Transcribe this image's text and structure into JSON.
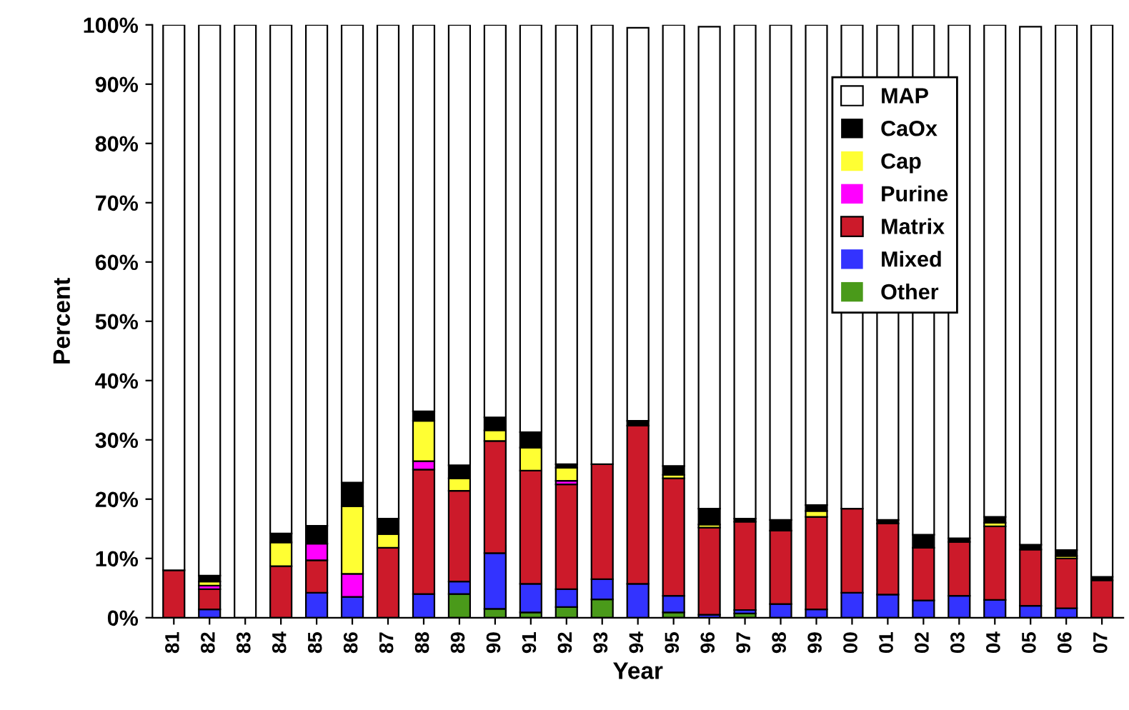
{
  "chart_data": {
    "type": "bar",
    "stacked": true,
    "xlabel": "Year",
    "ylabel": "Percent",
    "categories": [
      "81",
      "82",
      "83",
      "84",
      "85",
      "86",
      "87",
      "88",
      "89",
      "90",
      "91",
      "92",
      "93",
      "94",
      "95",
      "96",
      "97",
      "98",
      "99",
      "00",
      "01",
      "02",
      "03",
      "04",
      "05",
      "06",
      "07"
    ],
    "series": [
      {
        "name": "Other",
        "color": "#4a9a1a",
        "values": [
          0,
          0,
          0,
          0,
          0,
          0,
          0,
          0,
          4.0,
          1.5,
          0.9,
          1.8,
          3.1,
          null,
          0.9,
          null,
          0.7,
          0,
          0,
          0,
          0,
          0,
          0,
          0,
          null,
          0,
          0
        ]
      },
      {
        "name": "Mixed",
        "color": "#3333ff",
        "values": [
          0,
          1.4,
          0,
          0,
          4.2,
          3.5,
          0,
          4.0,
          2.1,
          9.4,
          4.8,
          3.0,
          3.4,
          5.7,
          2.8,
          0.5,
          0.6,
          2.3,
          1.4,
          4.2,
          3.9,
          2.9,
          3.7,
          3.0,
          2.0,
          1.6,
          0
        ]
      },
      {
        "name": "Matrix",
        "color": "#cc1a2a",
        "values": [
          8.0,
          3.4,
          0,
          8.7,
          5.5,
          0,
          11.8,
          21.0,
          15.3,
          18.9,
          19.1,
          17.7,
          19.4,
          26.7,
          19.8,
          14.7,
          14.9,
          12.4,
          15.6,
          14.2,
          12.0,
          8.9,
          9.1,
          12.4,
          9.5,
          8.4,
          6.3
        ]
      },
      {
        "name": "Purine",
        "color": "#ff00ff",
        "values": [
          0,
          0.6,
          0,
          0,
          2.8,
          3.9,
          0,
          1.4,
          0,
          0,
          0,
          0.6,
          0,
          0,
          0,
          0,
          0,
          0,
          0,
          0,
          0,
          0,
          0,
          0,
          0,
          0,
          0
        ]
      },
      {
        "name": "Cap",
        "color": "#ffff33",
        "values": [
          0,
          0.7,
          0,
          4.0,
          0,
          11.4,
          2.3,
          6.8,
          2.1,
          1.8,
          3.9,
          2.2,
          0,
          0,
          0.6,
          0.5,
          0,
          0,
          1.0,
          0,
          0,
          0,
          0,
          0.6,
          0,
          0.4,
          0
        ]
      },
      {
        "name": "CaOx",
        "color": "#000000",
        "values": [
          0,
          1.0,
          0,
          1.5,
          3.0,
          4.0,
          2.6,
          1.6,
          2.2,
          2.2,
          2.6,
          0.6,
          0,
          0.8,
          1.5,
          2.7,
          0.5,
          1.8,
          1.0,
          0,
          0.6,
          2.2,
          0.6,
          1.0,
          0.8,
          1.0,
          0.6
        ]
      },
      {
        "name": "MAP",
        "color": "#ffffff",
        "values": [
          92.0,
          92.9,
          100,
          85.8,
          84.5,
          77.2,
          83.3,
          65.2,
          74.3,
          66.2,
          68.7,
          74.1,
          74.1,
          66.3,
          74.4,
          81.3,
          83.3,
          83.5,
          81.0,
          81.6,
          83.5,
          86.0,
          86.6,
          83.0,
          87.4,
          88.6,
          93.1
        ]
      }
    ],
    "ylim": [
      0,
      100
    ],
    "yticks": [
      {
        "value": 0,
        "label": "0%"
      },
      {
        "value": 10,
        "label": "10%"
      },
      {
        "value": 20,
        "label": "20%"
      },
      {
        "value": 30,
        "label": "30%"
      },
      {
        "value": 40,
        "label": "40%"
      },
      {
        "value": 50,
        "label": "50%"
      },
      {
        "value": 60,
        "label": "60%"
      },
      {
        "value": 70,
        "label": "70%"
      },
      {
        "value": 80,
        "label": "80%"
      },
      {
        "value": 90,
        "label": "90%"
      },
      {
        "value": 100,
        "label": "100%"
      }
    ],
    "legend": "top right",
    "grid": false
  }
}
